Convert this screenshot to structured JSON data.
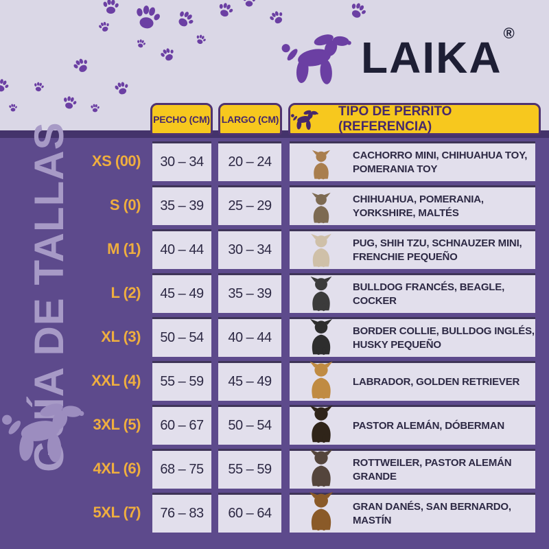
{
  "brand": {
    "name": "LAIKA",
    "registered": "®",
    "icon": "balloon-dog-icon"
  },
  "sidebar": {
    "title": "GUÍA DE TALLAS",
    "icon": "balloon-dog-icon"
  },
  "table": {
    "headers": {
      "pecho": "PECHO (CM)",
      "largo": "LARGO (CM)",
      "tipo": "TIPO DE PERRITO (REFERENCIA)",
      "tipo_icon": "balloon-dog-icon"
    },
    "rows": [
      {
        "size": "XS (00)",
        "pecho": "30 – 34",
        "largo": "20 – 24",
        "breeds": "CACHORRO MINI, CHIHUAHUA TOY, POMERANIA TOY",
        "dog": "chihuahua-toy",
        "dog_color": "#a97e4e"
      },
      {
        "size": "S (0)",
        "pecho": "35 – 39",
        "largo": "25 – 29",
        "breeds": "CHIHUAHUA, POMERANIA, YORKSHIRE, MALTÉS",
        "dog": "yorkshire",
        "dog_color": "#7d6a52"
      },
      {
        "size": "M (1)",
        "pecho": "40 – 44",
        "largo": "30 – 34",
        "breeds": "PUG, SHIH TZU, SCHNAUZER MINI, FRENCHIE PEQUEÑO",
        "dog": "shih-tzu",
        "dog_color": "#cfc0a8"
      },
      {
        "size": "L (2)",
        "pecho": "45 – 49",
        "largo": "35 – 39",
        "breeds": "BULLDOG FRANCÉS, BEAGLE, COCKER",
        "dog": "french-bulldog",
        "dog_color": "#3b3b3b"
      },
      {
        "size": "XL (3)",
        "pecho": "50 – 54",
        "largo": "40 – 44",
        "breeds": "BORDER COLLIE, BULLDOG INGLÉS, HUSKY PEQUEÑO",
        "dog": "border-collie",
        "dog_color": "#2d2d2d"
      },
      {
        "size": "XXL (4)",
        "pecho": "55 – 59",
        "largo": "45 – 49",
        "breeds": "LABRADOR, GOLDEN RETRIEVER",
        "dog": "golden-retriever",
        "dog_color": "#c08b42"
      },
      {
        "size": "3XL (5)",
        "pecho": "60 – 67",
        "largo": "50 – 54",
        "breeds": "PASTOR ALEMÁN, DÓBERMAN",
        "dog": "doberman",
        "dog_color": "#2f2419"
      },
      {
        "size": "4XL (6)",
        "pecho": "68 – 75",
        "largo": "55 – 59",
        "breeds": "ROTTWEILER, PASTOR ALEMÁN GRANDE",
        "dog": "rottweiler",
        "dog_color": "#54453c"
      },
      {
        "size": "5XL (7)",
        "pecho": "76 – 83",
        "largo": "60 – 64",
        "breeds": "GRAN DANÉS, SAN BERNARDO, MASTÍN",
        "dog": "mastiff",
        "dog_color": "#8a5a28"
      }
    ]
  },
  "decor": {
    "paw_icon": "paw-icon"
  },
  "colors": {
    "top_bg": "#dad7e6",
    "main_purple": "#5d4a8c",
    "dark_band": "#44336b",
    "cell_bg": "#e2dfec",
    "cell_border_top": "#3e3457",
    "accent_yellow": "#f7c81e",
    "tab_border": "#4f3370",
    "tab_text": "#46286b",
    "gold_label": "#efae3f",
    "text_dark": "#2d2944",
    "brand_navy": "#1e1f35",
    "brand_purple": "#6b3fa3",
    "light_purple": "#a79ac6",
    "balloon_light": "#9c8dbf"
  }
}
